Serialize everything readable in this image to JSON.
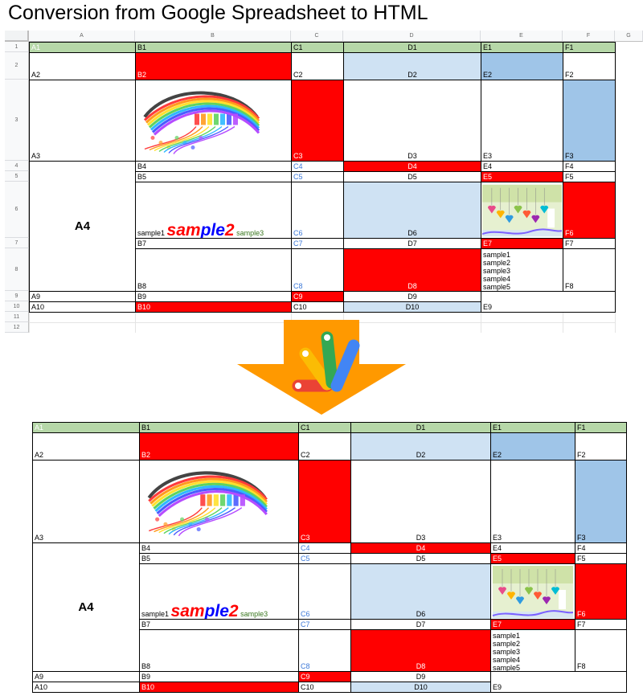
{
  "title": "Conversion from Google Spreadsheet to HTML",
  "column_headers": [
    "A",
    "B",
    "C",
    "D",
    "E",
    "F",
    "G"
  ],
  "row_headers": [
    "1",
    "2",
    "3",
    "4",
    "5",
    "6",
    "7",
    "8",
    "9",
    "10",
    "11",
    "12"
  ],
  "cells": {
    "A1": "A1",
    "B1": "B1",
    "C1": "C1",
    "D1": "D1",
    "E1": "E1",
    "F1": "F1",
    "A2": "A2",
    "B2": "B2",
    "C2": "C2",
    "D2": "D2",
    "E2": "E2",
    "F2": "F2",
    "A3": "A3",
    "C3": "C3",
    "D3": "D3",
    "E3": "E3",
    "F3": "F3",
    "A4": "A4",
    "B4": "B4",
    "C4": "C4",
    "D4": "D4",
    "E4": "E4",
    "F4": "F4",
    "B5": "B5",
    "C5": "C5",
    "D5": "D5",
    "E5": "E5",
    "F5": "F5",
    "C6": "C6",
    "D6": "D6",
    "F6": "F6",
    "B7": "B7",
    "C7": "C7",
    "D7": "D7",
    "E7": "E7",
    "F7": "F7",
    "B8": "B8",
    "C8": "C8",
    "D8": "D8",
    "F8": "F8",
    "A9": "A9",
    "B9": "B9",
    "C9": "C9",
    "D9": "D9",
    "A10": "A10",
    "B10": "B10",
    "C10": "C10",
    "D10": "D10",
    "E9": "E9"
  },
  "rich_text": {
    "part1": "sample1",
    "part2a": "sam",
    "part2b": "ple",
    "part2c": "2",
    "part3": "sample3"
  },
  "multiline": [
    "sample1",
    "sample2",
    "sample3",
    "sample4",
    "sample5"
  ],
  "colors": {
    "header_green": "#b6d7a8",
    "red": "#ff0000",
    "light_blue": "#cfe2f3",
    "medium_blue": "#9fc5e8",
    "arrow_orange": "#ff9900",
    "text_blue": "#3c78d8"
  },
  "icons": {
    "images": [
      "rainbow-paint-strokes-image",
      "heart-ornaments-image"
    ],
    "logo": "apps-script-logo-icon",
    "arrow": "down-arrow-icon"
  }
}
